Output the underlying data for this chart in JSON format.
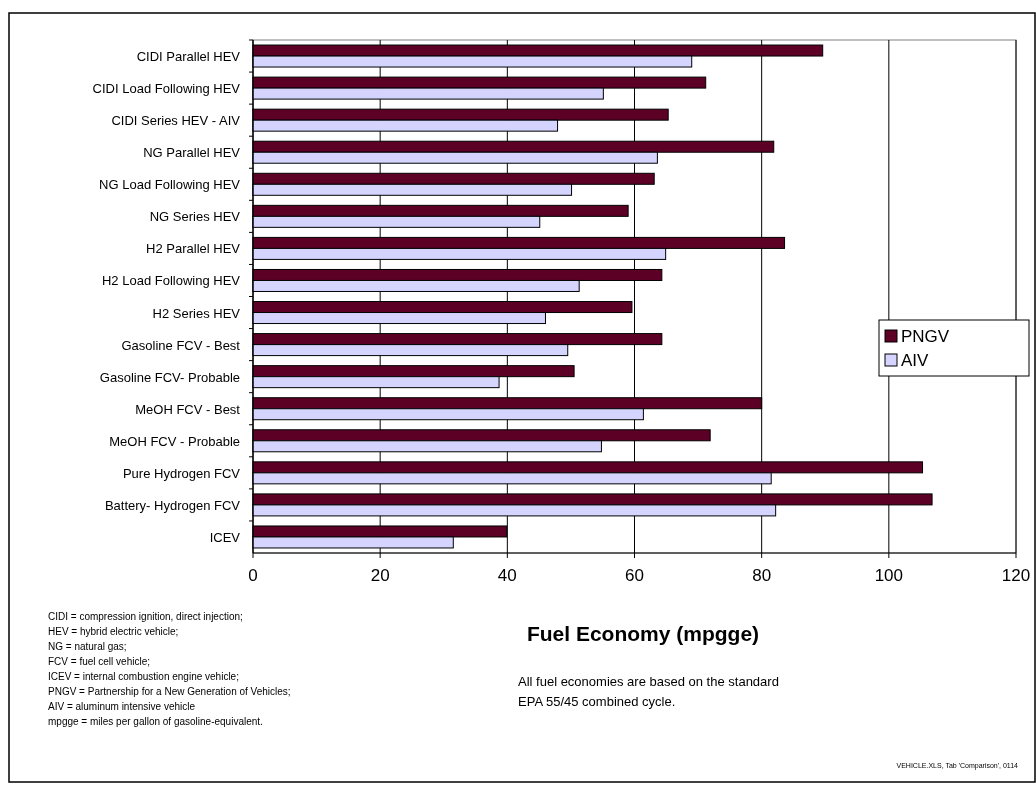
{
  "chart_data": {
    "type": "bar",
    "orientation": "horizontal",
    "xlabel": "Fuel Economy (mpgge)",
    "categories": [
      "CIDI Parallel HEV",
      "CIDI Load Following HEV",
      "CIDI Series HEV - AIV",
      "NG Parallel HEV",
      "NG Load Following HEV",
      "NG Series HEV",
      "H2 Parallel HEV",
      "H2 Load Following HEV",
      "H2 Series HEV",
      "Gasoline FCV - Best",
      "Gasoline FCV- Probable",
      "MeOH FCV - Best",
      "MeOH FCV - Probable",
      "Pure Hydrogen FCV",
      "Battery- Hydrogen FCV",
      "ICEV"
    ],
    "series": [
      {
        "name": "PNGV",
        "color": "#5c0026",
        "values": [
          89.6,
          71.2,
          65.3,
          81.9,
          63.1,
          59.0,
          83.6,
          64.3,
          59.6,
          64.3,
          50.5,
          80.0,
          71.9,
          105.3,
          106.8,
          39.9
        ]
      },
      {
        "name": "AIV",
        "color": "#d4d4ff",
        "values": [
          69.0,
          55.1,
          47.9,
          63.6,
          50.1,
          45.1,
          64.9,
          51.3,
          46.0,
          49.5,
          38.7,
          61.4,
          54.8,
          81.5,
          82.2,
          31.5
        ]
      }
    ],
    "xlim": [
      0,
      120
    ],
    "xticks": [
      0,
      20,
      40,
      60,
      80,
      100,
      120
    ],
    "grid": "x",
    "legend": "right",
    "annotations": [
      "CIDI = compression ignition, direct injection;",
      "HEV = hybrid electric vehicle;",
      "NG = natural gas;",
      "FCV = fuel cell vehicle;",
      "ICEV = internal combustion engine vehicle;",
      "PNGV = Partnership for a New Generation of Vehicles;",
      "AIV = aluminum intensive vehicle",
      "mpgge = miles per gallon of gasoline-equivalent.",
      "All fuel economies are based on the standard",
      "EPA 55/45 combined cycle.",
      "VEHICLE.XLS, Tab 'Comparison', 0114"
    ]
  }
}
